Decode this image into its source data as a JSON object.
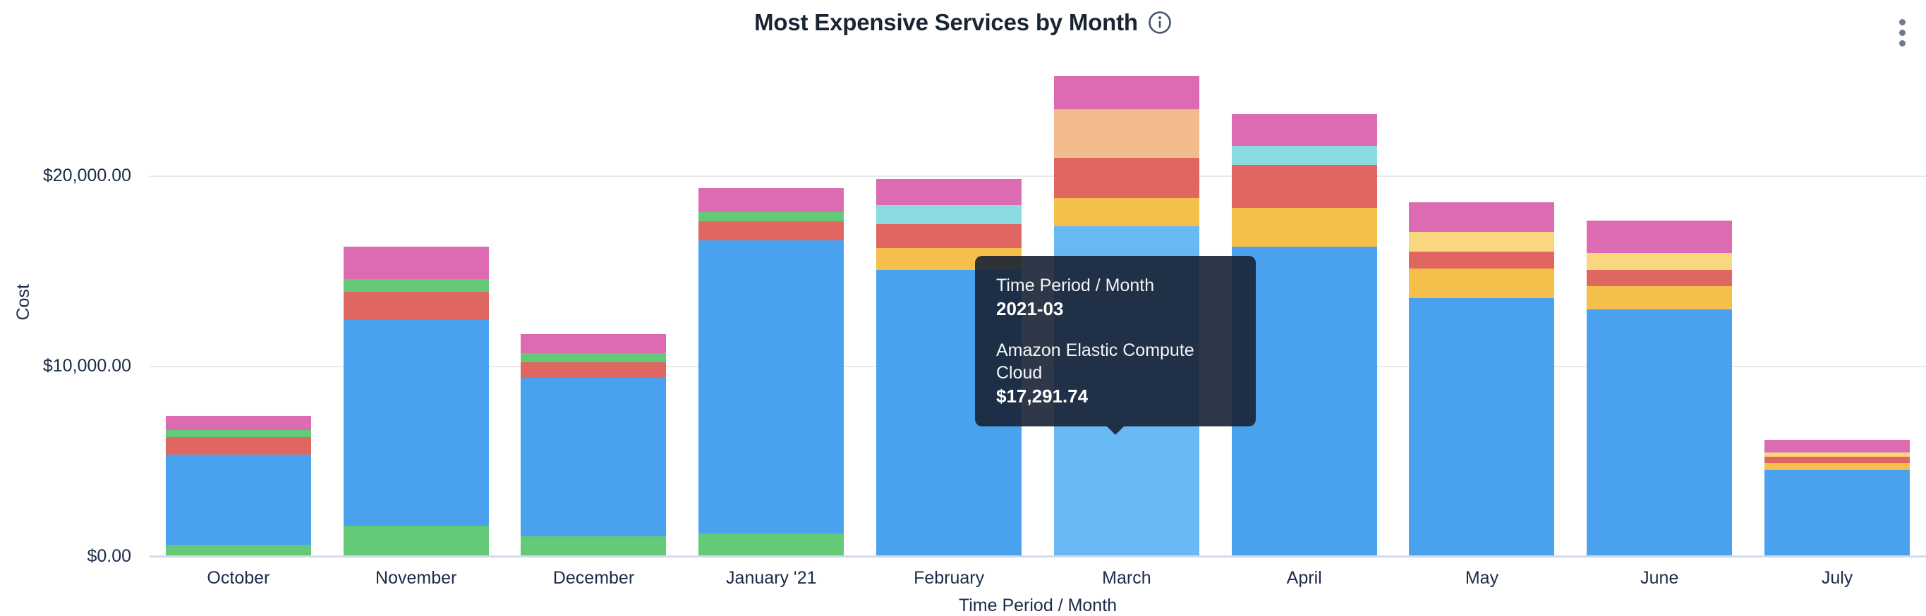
{
  "header": {
    "title": "Most Expensive Services by Month",
    "icons": {
      "info": "info-icon",
      "menu": "kebab-vertical-icon"
    }
  },
  "tooltip": {
    "label": "Time Period / Month",
    "period": "2021-03",
    "service": "Amazon Elastic Compute Cloud",
    "amount": "$17,291.74"
  },
  "chart_data": {
    "type": "bar",
    "stacked": true,
    "title": "Most Expensive Services by Month",
    "xlabel": "Time Period / Month",
    "ylabel": "Cost",
    "legend": "none",
    "grid": true,
    "ylim": [
      0,
      27000
    ],
    "y_ticks": [
      {
        "label": "$0.00",
        "value": 0
      },
      {
        "label": "$10,000.00",
        "value": 10000
      },
      {
        "label": "$20,000.00",
        "value": 20000
      }
    ],
    "categories": [
      "October",
      "November",
      "December",
      "January '21",
      "February",
      "March",
      "April",
      "May",
      "June",
      "July"
    ],
    "highlighted_month": "March",
    "highlighted_value": 17291.74,
    "palette": {
      "blue": "#4aa2ee",
      "blue_light": "#68b8f4",
      "green": "#64ca77",
      "red": "#e06662",
      "pink": "#dc6bb2",
      "amber": "#f5bf4b",
      "light_yellow": "#f8d77f",
      "peach": "#f2bb8d",
      "cyan": "#8adce2"
    },
    "bars": [
      {
        "month": "October",
        "total": 7330,
        "segments": [
          {
            "color": "green",
            "value": 550
          },
          {
            "color": "blue",
            "value": 4740
          },
          {
            "color": "red",
            "value": 930
          },
          {
            "color": "green",
            "value": 370
          },
          {
            "color": "pink",
            "value": 740
          }
        ]
      },
      {
        "month": "November",
        "total": 16225,
        "segments": [
          {
            "color": "green",
            "value": 1556
          },
          {
            "color": "blue",
            "value": 10815
          },
          {
            "color": "red",
            "value": 1481
          },
          {
            "color": "green",
            "value": 667
          },
          {
            "color": "pink",
            "value": 1704
          }
        ]
      },
      {
        "month": "December",
        "total": 11630,
        "segments": [
          {
            "color": "green",
            "value": 1000
          },
          {
            "color": "blue",
            "value": 8333
          },
          {
            "color": "red",
            "value": 815
          },
          {
            "color": "green",
            "value": 481
          },
          {
            "color": "pink",
            "value": 1000
          }
        ]
      },
      {
        "month": "January '21",
        "total": 19295,
        "segments": [
          {
            "color": "green",
            "value": 1148
          },
          {
            "color": "blue",
            "value": 15407
          },
          {
            "color": "red",
            "value": 1000
          },
          {
            "color": "green",
            "value": 481
          },
          {
            "color": "pink",
            "value": 1259
          }
        ]
      },
      {
        "month": "February",
        "total": 19780,
        "segments": [
          {
            "color": "blue",
            "value": 15000
          },
          {
            "color": "amber",
            "value": 1148
          },
          {
            "color": "red",
            "value": 1259
          },
          {
            "color": "cyan",
            "value": 1000
          },
          {
            "color": "pink",
            "value": 1370
          }
        ]
      },
      {
        "month": "March",
        "total": 25180,
        "segments": [
          {
            "color": "blue_light",
            "value": 17291.74
          },
          {
            "color": "amber",
            "value": 1481
          },
          {
            "color": "red",
            "value": 2111
          },
          {
            "color": "peach",
            "value": 2556
          },
          {
            "color": "pink",
            "value": 1741
          }
        ]
      },
      {
        "month": "April",
        "total": 23185,
        "segments": [
          {
            "color": "blue",
            "value": 16222
          },
          {
            "color": "amber",
            "value": 2037
          },
          {
            "color": "red",
            "value": 2259
          },
          {
            "color": "cyan",
            "value": 1000
          },
          {
            "color": "pink",
            "value": 1667
          }
        ]
      },
      {
        "month": "May",
        "total": 18555,
        "segments": [
          {
            "color": "blue",
            "value": 13519
          },
          {
            "color": "amber",
            "value": 1556
          },
          {
            "color": "red",
            "value": 889
          },
          {
            "color": "light_yellow",
            "value": 1037
          },
          {
            "color": "pink",
            "value": 1556
          }
        ]
      },
      {
        "month": "June",
        "total": 17590,
        "segments": [
          {
            "color": "blue",
            "value": 12926
          },
          {
            "color": "amber",
            "value": 1222
          },
          {
            "color": "red",
            "value": 852
          },
          {
            "color": "light_yellow",
            "value": 889
          },
          {
            "color": "pink",
            "value": 1704
          }
        ]
      },
      {
        "month": "July",
        "total": 6075,
        "segments": [
          {
            "color": "blue",
            "value": 4481
          },
          {
            "color": "amber",
            "value": 370
          },
          {
            "color": "red",
            "value": 333
          },
          {
            "color": "light_yellow",
            "value": 222
          },
          {
            "color": "pink",
            "value": 667
          }
        ]
      }
    ]
  }
}
